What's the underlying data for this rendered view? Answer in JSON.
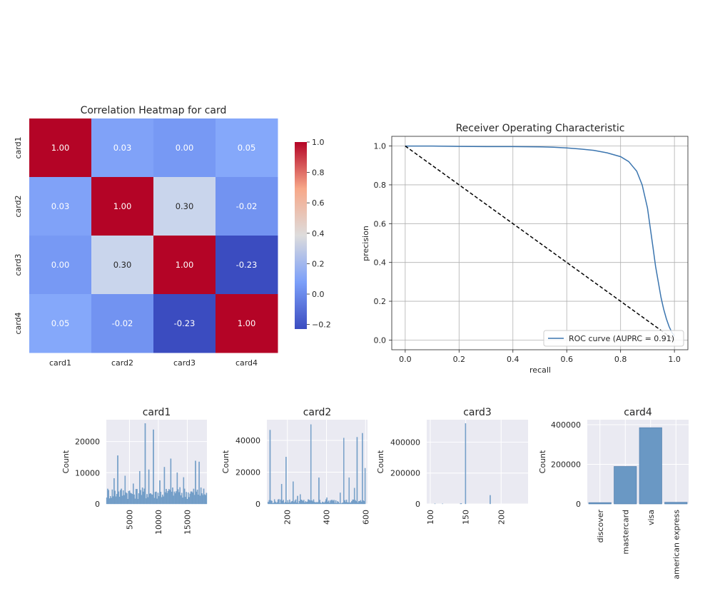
{
  "chart_data": [
    {
      "type": "heatmap",
      "title": "Correlation Heatmap for card",
      "rows": [
        "card1",
        "card2",
        "card3",
        "card4"
      ],
      "columns": [
        "card1",
        "card2",
        "card3",
        "card4"
      ],
      "values": [
        [
          1.0,
          0.03,
          0.0,
          0.05
        ],
        [
          0.03,
          1.0,
          0.3,
          -0.02
        ],
        [
          0.0,
          0.3,
          1.0,
          -0.23
        ],
        [
          0.05,
          -0.02,
          -0.23,
          1.0
        ]
      ],
      "colorbar": {
        "min": -0.23,
        "max": 1.0,
        "ticks": [
          1.0,
          0.8,
          0.6,
          0.4,
          0.2,
          0.0,
          -0.2
        ],
        "colormap": "coolwarm"
      }
    },
    {
      "type": "line",
      "title": "Receiver Operating Characteristic",
      "xlabel": "recall",
      "ylabel": "precision",
      "xlim": [
        -0.05,
        1.05
      ],
      "ylim": [
        -0.05,
        1.05
      ],
      "xticks": [
        0.0,
        0.2,
        0.4,
        0.6,
        0.8,
        1.0
      ],
      "yticks": [
        0.0,
        0.2,
        0.4,
        0.6,
        0.8,
        1.0
      ],
      "grid": true,
      "legend_position": "lower-right",
      "series": [
        {
          "name": "ROC curve (AUPRC = 0.91)",
          "color": "#3b75af",
          "x": [
            0.0,
            0.05,
            0.1,
            0.2,
            0.3,
            0.4,
            0.5,
            0.55,
            0.6,
            0.65,
            0.7,
            0.75,
            0.8,
            0.83,
            0.86,
            0.88,
            0.9,
            0.91,
            0.92,
            0.93,
            0.94,
            0.95,
            0.96,
            0.97,
            0.98,
            0.99,
            1.0
          ],
          "y": [
            1.0,
            1.0,
            1.0,
            0.998,
            0.997,
            0.997,
            0.996,
            0.994,
            0.99,
            0.985,
            0.978,
            0.965,
            0.945,
            0.92,
            0.87,
            0.8,
            0.68,
            0.58,
            0.48,
            0.38,
            0.3,
            0.22,
            0.16,
            0.11,
            0.07,
            0.04,
            0.02
          ]
        },
        {
          "name": "",
          "color": "#000000",
          "style": "dashed",
          "x": [
            0.0,
            1.0
          ],
          "y": [
            1.0,
            0.0
          ]
        }
      ]
    },
    {
      "type": "bar",
      "title": "card1",
      "ylabel": "Count",
      "xlim": [
        1000,
        18400
      ],
      "ylim": [
        0,
        27000
      ],
      "xticks": [
        5000,
        10000,
        15000
      ],
      "yticks": [
        0,
        10000,
        20000
      ],
      "bar_color": "#6a98c4",
      "x_range": [
        1000,
        18400
      ],
      "peaks": [
        [
          3000,
          15500
        ],
        [
          7800,
          25800
        ],
        [
          9200,
          23800
        ],
        [
          6800,
          10500
        ],
        [
          11000,
          11800
        ],
        [
          12200,
          14500
        ],
        [
          16500,
          13800
        ],
        [
          17000,
          13500
        ],
        [
          2300,
          8200
        ],
        [
          4300,
          9000
        ],
        [
          13300,
          10000
        ],
        [
          14300,
          8500
        ],
        [
          8300,
          11000
        ],
        [
          10200,
          7500
        ],
        [
          5600,
          6500
        ]
      ],
      "base_counts": [
        1500,
        5500
      ]
    },
    {
      "type": "bar",
      "title": "card2",
      "ylabel": "Count",
      "xlim": [
        95,
        610
      ],
      "ylim": [
        0,
        53000
      ],
      "xticks": [
        200,
        400,
        600
      ],
      "yticks": [
        0,
        20000,
        40000
      ],
      "bar_color": "#6a98c4",
      "x_range": [
        100,
        600
      ],
      "peaks": [
        [
          111,
          46500
        ],
        [
          321,
          50000
        ],
        [
          583,
          44500
        ],
        [
          555,
          42000
        ],
        [
          490,
          41500
        ],
        [
          194,
          29500
        ],
        [
          170,
          12500
        ],
        [
          360,
          16500
        ],
        [
          230,
          14000
        ],
        [
          514,
          16500
        ],
        [
          545,
          10000
        ],
        [
          596,
          22500
        ],
        [
          268,
          6000
        ],
        [
          250,
          5000
        ],
        [
          470,
          7000
        ],
        [
          400,
          4000
        ]
      ],
      "base_counts": [
        200,
        3000
      ]
    },
    {
      "type": "bar",
      "title": "card3",
      "ylabel": "Count",
      "xlim": [
        95,
        238
      ],
      "ylim": [
        0,
        545000
      ],
      "xticks": [
        100,
        150,
        200
      ],
      "yticks": [
        0,
        200000,
        400000
      ],
      "bar_color": "#6a98c4",
      "x_range": [
        100,
        232
      ],
      "peaks": [
        [
          150,
          521000
        ],
        [
          185,
          56000
        ],
        [
          106,
          1500
        ],
        [
          144,
          4000
        ],
        [
          117,
          800
        ],
        [
          143,
          2000
        ]
      ],
      "base_counts": [
        0,
        0
      ]
    },
    {
      "type": "bar",
      "title": "card4",
      "ylabel": "Count",
      "categories": [
        "discover",
        "mastercard",
        "visa",
        "american express"
      ],
      "values": [
        6700,
        189200,
        384800,
        8300
      ],
      "ylim": [
        0,
        425000
      ],
      "yticks": [
        0,
        200000,
        400000
      ],
      "bar_color": "#6a98c4"
    }
  ]
}
